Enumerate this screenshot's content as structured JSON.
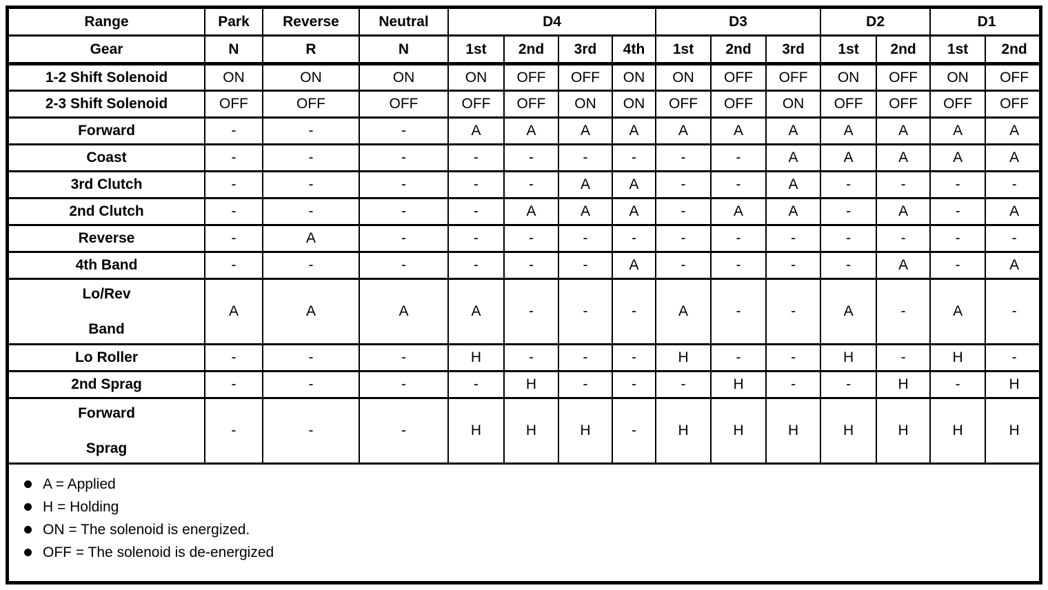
{
  "doc": {
    "title": "Transmission range / gear application chart",
    "ink_color": "#000000",
    "paper_color": "#ffffff"
  },
  "chart_data": {
    "type": "table",
    "header_row1": [
      {
        "label": "Range",
        "colspan": 1
      },
      {
        "label": "Park",
        "colspan": 1
      },
      {
        "label": "Reverse",
        "colspan": 1
      },
      {
        "label": "Neutral",
        "colspan": 1
      },
      {
        "label": "D4",
        "colspan": 4
      },
      {
        "label": "D3",
        "colspan": 3
      },
      {
        "label": "D2",
        "colspan": 2
      },
      {
        "label": "D1",
        "colspan": 2
      }
    ],
    "header_row2": [
      "Gear",
      "N",
      "R",
      "N",
      "1st",
      "2nd",
      "3rd",
      "4th",
      "1st",
      "2nd",
      "3rd",
      "1st",
      "2nd",
      "1st",
      "2nd"
    ],
    "rows": [
      {
        "label": "1-2 Shift Solenoid",
        "values": [
          "ON",
          "ON",
          "ON",
          "ON",
          "OFF",
          "OFF",
          "ON",
          "ON",
          "OFF",
          "OFF",
          "ON",
          "OFF",
          "ON",
          "OFF"
        ]
      },
      {
        "label": "2-3 Shift Solenoid",
        "values": [
          "OFF",
          "OFF",
          "OFF",
          "OFF",
          "OFF",
          "ON",
          "ON",
          "OFF",
          "OFF",
          "ON",
          "OFF",
          "OFF",
          "OFF",
          "OFF"
        ]
      },
      {
        "label": "Forward",
        "values": [
          "-",
          "-",
          "-",
          "A",
          "A",
          "A",
          "A",
          "A",
          "A",
          "A",
          "A",
          "A",
          "A",
          "A"
        ]
      },
      {
        "label": "Coast",
        "values": [
          "-",
          "-",
          "-",
          "-",
          "-",
          "-",
          "-",
          "-",
          "-",
          "A",
          "A",
          "A",
          "A",
          "A"
        ]
      },
      {
        "label": "3rd Clutch",
        "values": [
          "-",
          "-",
          "-",
          "-",
          "-",
          "A",
          "A",
          "-",
          "-",
          "A",
          "-",
          "-",
          "-",
          "-"
        ]
      },
      {
        "label": "2nd Clutch",
        "values": [
          "-",
          "-",
          "-",
          "-",
          "A",
          "A",
          "A",
          "-",
          "A",
          "A",
          "-",
          "A",
          "-",
          "A"
        ]
      },
      {
        "label": "Reverse",
        "values": [
          "-",
          "A",
          "-",
          "-",
          "-",
          "-",
          "-",
          "-",
          "-",
          "-",
          "-",
          "-",
          "-",
          "-"
        ]
      },
      {
        "label": "4th Band",
        "values": [
          "-",
          "-",
          "-",
          "-",
          "-",
          "-",
          "A",
          "-",
          "-",
          "-",
          "-",
          "A",
          "-",
          "A"
        ]
      },
      {
        "label": "Lo/Rev Band",
        "label_lines": [
          "Lo/Rev",
          "Band"
        ],
        "tall": true,
        "values": [
          "A",
          "A",
          "A",
          "A",
          "-",
          "-",
          "-",
          "A",
          "-",
          "-",
          "A",
          "-",
          "A",
          "-"
        ]
      },
      {
        "label": "Lo Roller",
        "values": [
          "-",
          "-",
          "-",
          "H",
          "-",
          "-",
          "-",
          "H",
          "-",
          "-",
          "H",
          "-",
          "H",
          "-"
        ]
      },
      {
        "label": "2nd Sprag",
        "values": [
          "-",
          "-",
          "-",
          "-",
          "H",
          "-",
          "-",
          "-",
          "H",
          "-",
          "-",
          "H",
          "-",
          "H"
        ]
      },
      {
        "label": "Forward Sprag",
        "label_lines": [
          "Forward",
          "Sprag"
        ],
        "tall": true,
        "values": [
          "-",
          "-",
          "-",
          "H",
          "H",
          "H",
          "-",
          "H",
          "H",
          "H",
          "H",
          "H",
          "H",
          "H"
        ]
      }
    ],
    "legend": [
      "A = Applied",
      "H = Holding",
      "ON = The solenoid is energized.",
      "OFF = The solenoid is de-energized"
    ]
  }
}
